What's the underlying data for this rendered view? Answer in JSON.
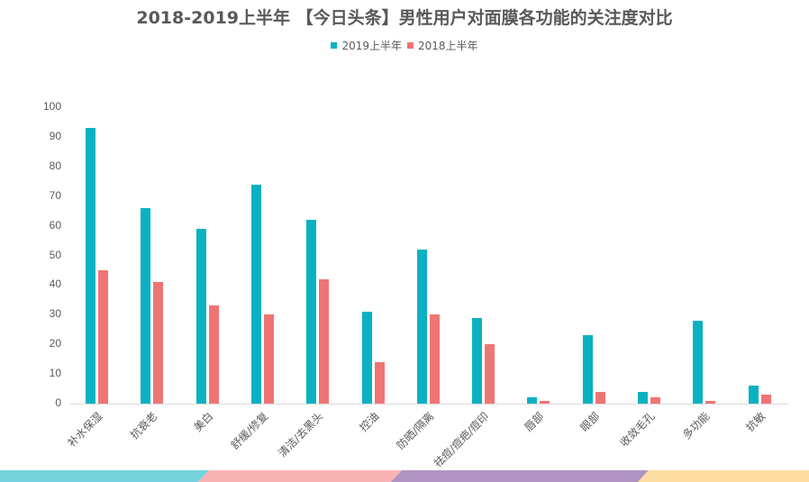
{
  "title": "2018-2019上半年 【今日头条】男性用户对面膜各功能的关注度对比",
  "legend": [
    {
      "label": "2019上半年",
      "color": "#0BB1C2"
    },
    {
      "label": "2018上半年",
      "color": "#EF7574"
    }
  ],
  "colors": {
    "series_2019": "#0BB1C2",
    "series_2018": "#EF7574",
    "stripe": [
      "#74D3DC",
      "#F9B3B5",
      "#B093C2",
      "#FDDDA1"
    ]
  },
  "chart_data": {
    "type": "bar",
    "title": "2018-2019上半年 【今日头条】男性用户对面膜各功能的关注度对比",
    "xlabel": "",
    "ylabel": "",
    "ylim": [
      0,
      100
    ],
    "yticks": [
      0,
      10,
      20,
      30,
      40,
      50,
      60,
      70,
      80,
      90,
      100
    ],
    "grid": false,
    "legend_position": "top",
    "categories": [
      "补水保湿",
      "抗衰老",
      "美白",
      "舒缓/修复",
      "清洁/去黑头",
      "控油",
      "防晒/隔离",
      "祛痘/痘疤/痘印",
      "唇部",
      "眼部",
      "收敛毛孔",
      "多功能",
      "抗敏"
    ],
    "series": [
      {
        "name": "2019上半年",
        "values": [
          93,
          66,
          59,
          74,
          62,
          31,
          52,
          29,
          2,
          23,
          4,
          28,
          6
        ]
      },
      {
        "name": "2018上半年",
        "values": [
          45,
          41,
          33,
          30,
          42,
          14,
          30,
          20,
          1,
          4,
          2,
          1,
          3
        ]
      }
    ]
  }
}
